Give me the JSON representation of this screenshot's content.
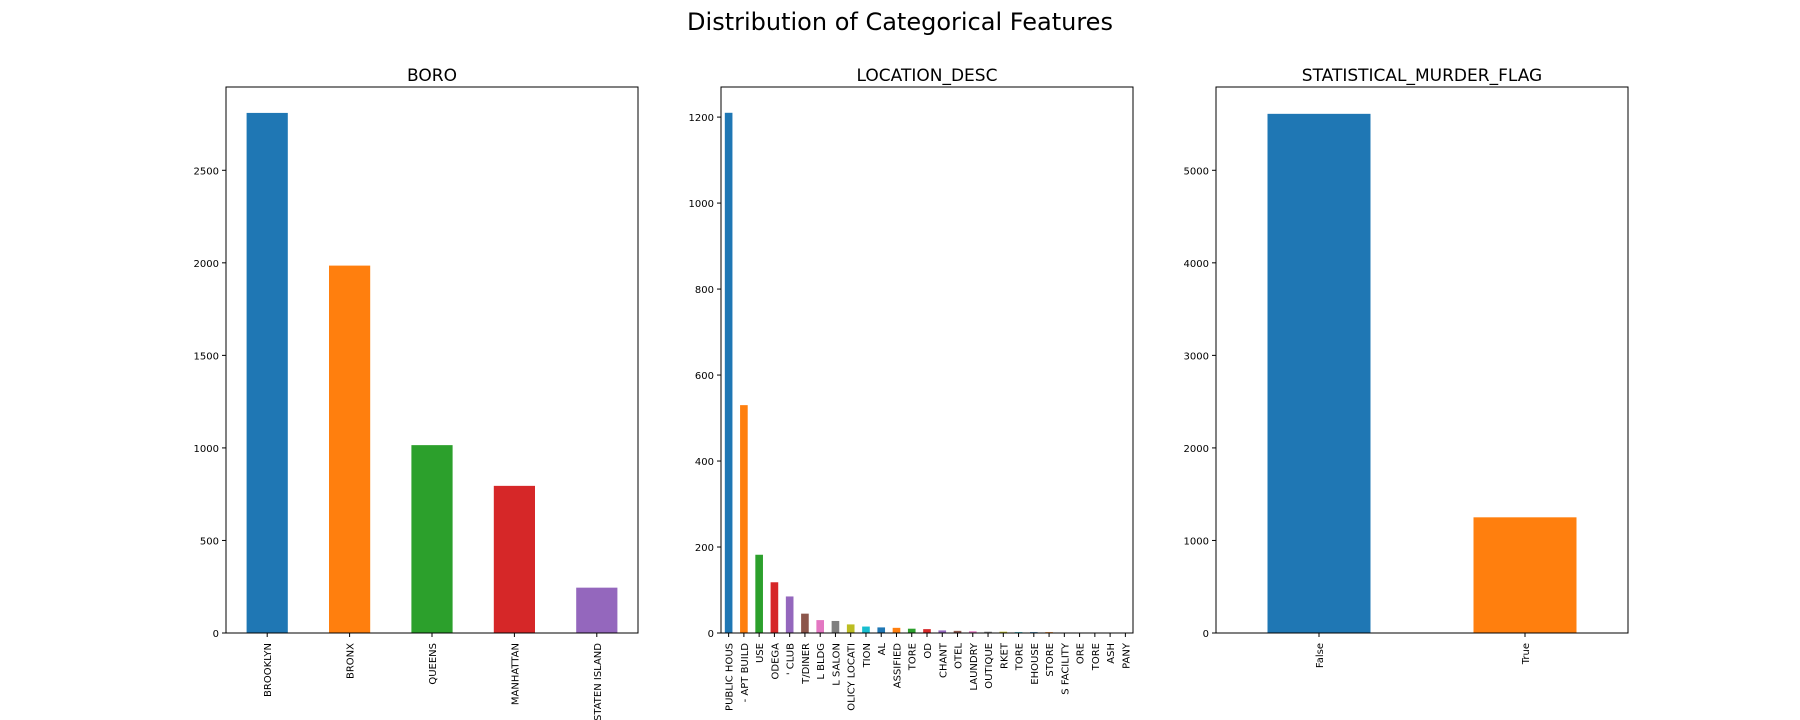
{
  "figure": {
    "title": "Distribution of Categorical Features"
  },
  "chart_data": [
    {
      "type": "bar",
      "title": "BORO",
      "xlabel": "",
      "ylabel": "",
      "ylim": [
        0,
        2950
      ],
      "yticks": [
        0,
        500,
        1000,
        1500,
        2000,
        2500
      ],
      "grid": false,
      "categories": [
        "BROOKLYN",
        "BRONX",
        "QUEENS",
        "MANHATTAN",
        "STATEN ISLAND"
      ],
      "values": [
        2810,
        1985,
        1015,
        795,
        245
      ],
      "colors": [
        "#1f77b4",
        "#ff7f0e",
        "#2ca02c",
        "#d62728",
        "#9467bd"
      ]
    },
    {
      "type": "bar",
      "title": "LOCATION_DESC",
      "xlabel": "",
      "ylabel": "",
      "ylim": [
        0,
        1270
      ],
      "yticks": [
        0,
        200,
        400,
        600,
        800,
        1000,
        1200
      ],
      "grid": false,
      "categories": [
        "PUBLIC HOUS",
        "- APT BUILD",
        "USE",
        "ODEGA",
        "' CLUB",
        "T/DINER",
        "L BLDG",
        "L SALON",
        "OLICY LOCATI",
        "TION",
        "AL",
        "ASSIFIED",
        "TORE",
        "OD",
        "CHANT",
        "OTEL",
        "LAUNDRY",
        "OUTIQUE",
        "RKET",
        "TORE",
        "EHOUSE",
        "STORE",
        "S FACILITY",
        "ORE",
        "TORE",
        "ASH",
        "PANY"
      ],
      "values": [
        1210,
        530,
        182,
        118,
        85,
        45,
        30,
        28,
        20,
        15,
        13,
        12,
        10,
        9,
        6,
        5,
        4,
        3,
        3,
        2,
        2,
        2,
        1,
        1,
        1,
        1,
        1
      ],
      "colors": [
        "#1f77b4",
        "#ff7f0e",
        "#2ca02c",
        "#d62728",
        "#9467bd",
        "#8c564b",
        "#e377c2",
        "#7f7f7f",
        "#bcbd22",
        "#17becf"
      ]
    },
    {
      "type": "bar",
      "title": "STATISTICAL_MURDER_FLAG",
      "xlabel": "",
      "ylabel": "",
      "ylim": [
        0,
        5900
      ],
      "yticks": [
        0,
        1000,
        2000,
        3000,
        4000,
        5000
      ],
      "grid": false,
      "categories": [
        "False",
        "True"
      ],
      "values": [
        5610,
        1250
      ],
      "colors": [
        "#1f77b4",
        "#ff7f0e"
      ]
    }
  ]
}
